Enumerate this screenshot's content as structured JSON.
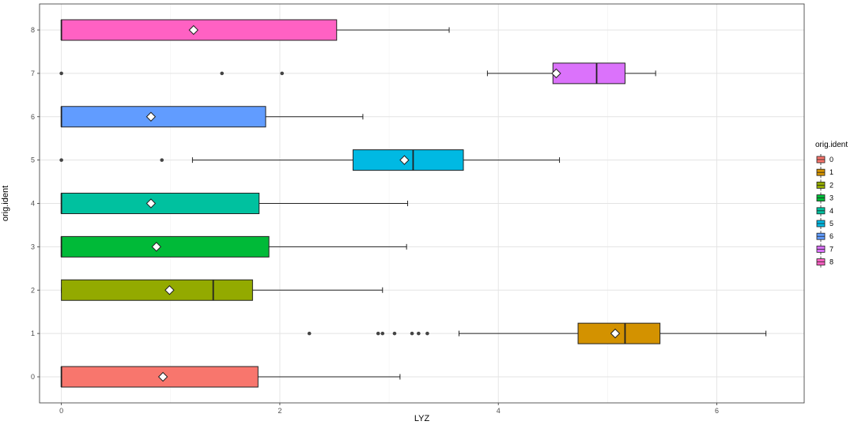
{
  "chart_data": {
    "type": "boxplot",
    "orientation": "horizontal",
    "title": "",
    "xlabel": "LYZ",
    "ylabel": "orig.ident",
    "xlim": [
      -0.2,
      6.8
    ],
    "xticks": [
      0,
      2,
      4,
      6
    ],
    "yticks": [
      "0",
      "1",
      "2",
      "3",
      "4",
      "5",
      "6",
      "7",
      "8"
    ],
    "grid": true,
    "legend": {
      "title": "orig.ident",
      "placement": "right",
      "labels": [
        "0",
        "1",
        "2",
        "3",
        "4",
        "5",
        "6",
        "7",
        "8"
      ]
    },
    "mean_marker": "diamond",
    "series": [
      {
        "name": "0",
        "color": "#F8766D",
        "q1": 0,
        "median": 0,
        "q3": 1.8,
        "whisker_low": 0,
        "whisker_high": 3.1,
        "mean": 0.93,
        "outliers": []
      },
      {
        "name": "1",
        "color": "#D39200",
        "q1": 4.73,
        "median": 5.16,
        "q3": 5.48,
        "whisker_low": 3.64,
        "whisker_high": 6.45,
        "mean": 5.07,
        "outliers": [
          2.27,
          2.9,
          2.94,
          3.05,
          3.21,
          3.27,
          3.35
        ]
      },
      {
        "name": "2",
        "color": "#93AA00",
        "q1": 0,
        "median": 1.39,
        "q3": 1.75,
        "whisker_low": 0,
        "whisker_high": 2.94,
        "mean": 0.99,
        "outliers": []
      },
      {
        "name": "3",
        "color": "#00BA38",
        "q1": 0,
        "median": 0,
        "q3": 1.9,
        "whisker_low": 0,
        "whisker_high": 3.16,
        "mean": 0.87,
        "outliers": []
      },
      {
        "name": "4",
        "color": "#00C19F",
        "q1": 0,
        "median": 0,
        "q3": 1.81,
        "whisker_low": 0,
        "whisker_high": 3.17,
        "mean": 0.82,
        "outliers": []
      },
      {
        "name": "5",
        "color": "#00B9E3",
        "q1": 2.67,
        "median": 3.22,
        "q3": 3.68,
        "whisker_low": 1.2,
        "whisker_high": 4.56,
        "mean": 3.14,
        "outliers": [
          0,
          0.92
        ]
      },
      {
        "name": "6",
        "color": "#619CFF",
        "q1": 0,
        "median": 0,
        "q3": 1.87,
        "whisker_low": 0,
        "whisker_high": 2.76,
        "mean": 0.82,
        "outliers": []
      },
      {
        "name": "7",
        "color": "#DB72FB",
        "q1": 4.5,
        "median": 4.9,
        "q3": 5.16,
        "whisker_low": 3.9,
        "whisker_high": 5.44,
        "mean": 4.53,
        "outliers": [
          0,
          1.47,
          2.02
        ]
      },
      {
        "name": "8",
        "color": "#FF61C3",
        "q1": 0,
        "median": 0,
        "q3": 2.52,
        "whisker_low": 0,
        "whisker_high": 3.55,
        "mean": 1.21,
        "outliers": []
      }
    ]
  }
}
